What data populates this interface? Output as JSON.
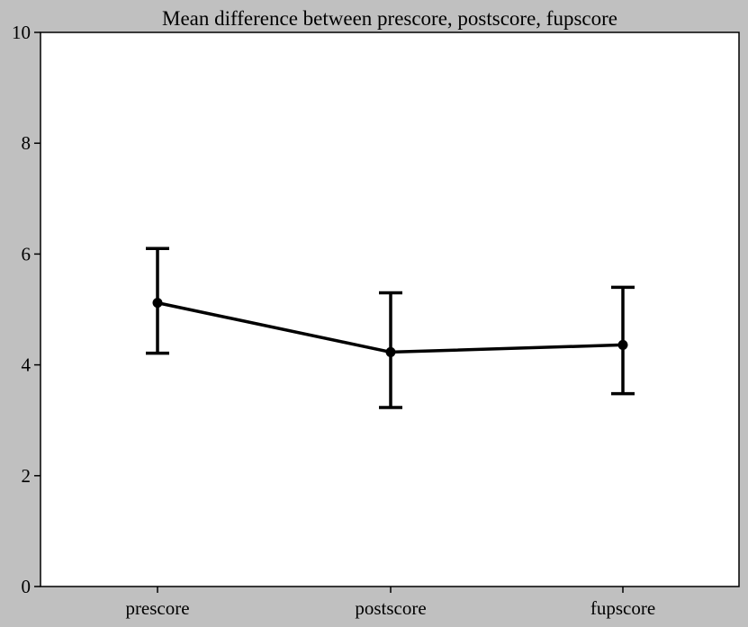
{
  "chart_data": {
    "type": "line",
    "title": "Mean difference between prescore, postscore, fupscore",
    "xlabel": "",
    "ylabel": "",
    "categories": [
      "prescore",
      "postscore",
      "fupscore"
    ],
    "series": [
      {
        "values": [
          5.12,
          4.23,
          4.36
        ],
        "error_low": [
          4.21,
          3.23,
          3.48
        ],
        "error_high": [
          6.1,
          5.3,
          5.4
        ]
      }
    ],
    "ylim": [
      0,
      10
    ],
    "yticks": [
      0,
      2,
      4,
      6,
      8,
      10
    ],
    "grid": false,
    "colors": {
      "background": "#c0c0c0",
      "plot_area": "#ffffff",
      "line": "#000000"
    }
  }
}
